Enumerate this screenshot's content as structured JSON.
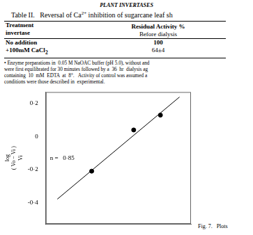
{
  "header": "PLANT INVERTASES",
  "table": {
    "title": {
      "text": "Table II.   Reversal of Ca",
      "superscript": "2+",
      "text_after": " inhibition of sugarcane leaf sh"
    },
    "columns": [
      [
        "Treatment",
        "invertase"
      ],
      [
        "Residual Activity %"
      ]
    ],
    "subheader": "Before dialysis",
    "rows": [
      {
        "treatment": "No addition",
        "value": "100"
      },
      {
        "treatment": "+100mM CaCl",
        "treatment_subscript": "2",
        "value": "64±4"
      }
    ],
    "footnote": [
      "• Enzyme preparations in  0.05 M NaOAC buffer (pH 5.0), without and",
      "were first equilibrated for 30 minutes followed by a  36  hr  dialysis ag",
      "containing  10  mM  EDTA  at  8°.   Activity of control was assumed a",
      "conditions were those described in  experimental."
    ]
  },
  "chart_data": {
    "type": "scatter",
    "y_label": [
      "log",
      "( Vo − Vi )",
      "Vi"
    ],
    "annotation": "n =   0·85",
    "caption": "Fig. 7.   Plots",
    "xlim": [
      0.4,
      2.3
    ],
    "ylim": [
      -0.53,
      0.27
    ],
    "yticks": [
      {
        "value": 0.2,
        "label": "0·2"
      },
      0,
      {
        "value": -0.2,
        "label": "-0·2"
      },
      {
        "value": -0.4,
        "label": "-0·4"
      }
    ],
    "grid": false,
    "tick_labels": "y",
    "series": [
      {
        "type": "scatter",
        "x": [
          1.0,
          1.55,
          1.9
        ],
        "values": [
          -0.21,
          0.04,
          0.13
        ],
        "color": "#000000",
        "marker": "circle"
      },
      {
        "type": "line",
        "x": [
          0.55,
          2.15
        ],
        "values": [
          -0.38,
          0.24
        ],
        "color": "#000000",
        "line_style": "solid"
      }
    ]
  }
}
